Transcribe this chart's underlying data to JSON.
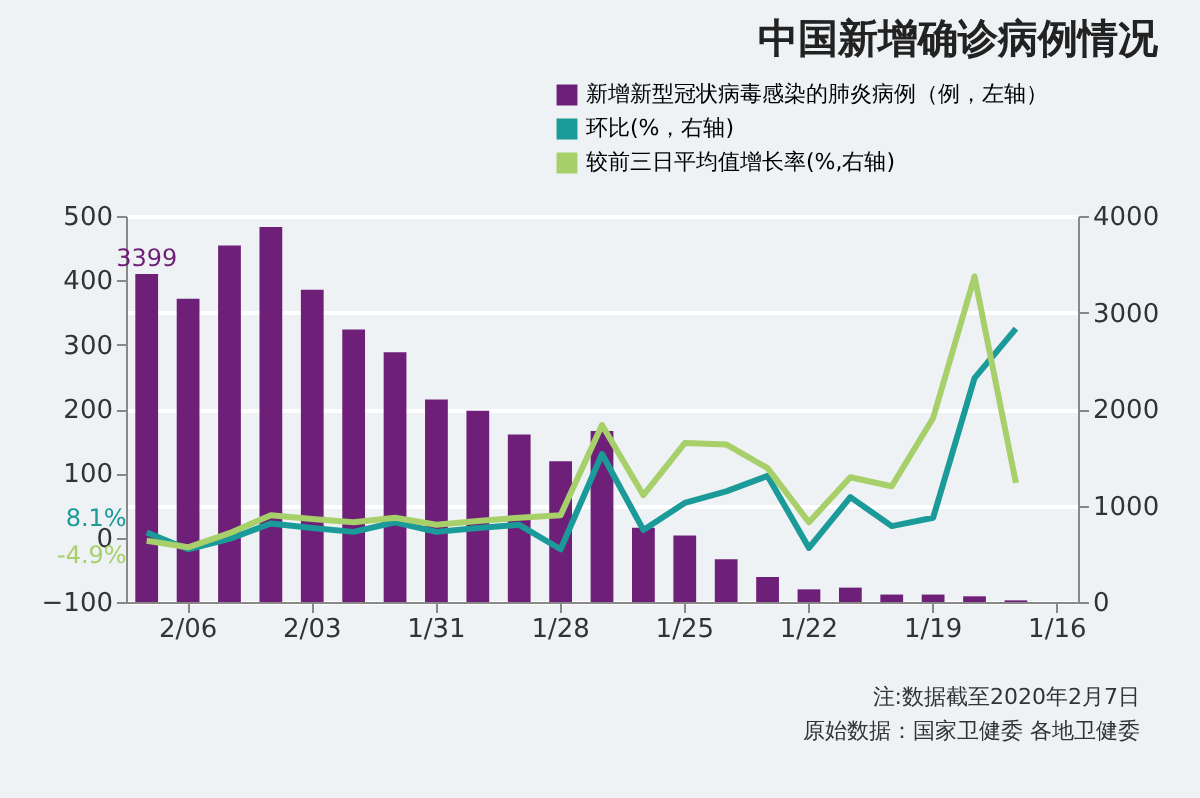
{
  "chart_data": {
    "type": "bar",
    "title": "中国新增确诊病例情况",
    "categories": [
      null,
      "2/06",
      null,
      null,
      "2/03",
      null,
      null,
      "1/31",
      null,
      null,
      "1/28",
      null,
      null,
      "1/25",
      null,
      null,
      "1/22",
      null,
      null,
      "1/19",
      null,
      null,
      "1/16"
    ],
    "series": [
      {
        "name": "新增新型冠状病毒感染的肺炎病例（例，左轴）",
        "color": "#6e1f78",
        "values": [
          3399,
          3143,
          3694,
          3887,
          3235,
          2825,
          2589,
          2099,
          1981,
          1737,
          1459,
          1771,
          769,
          688,
          444,
          259,
          131,
          149,
          77,
          77,
          59,
          17,
          null
        ],
        "value_labels": [
          "3399",
          null,
          null,
          null,
          null,
          null,
          null,
          null,
          null,
          null,
          null,
          null,
          null,
          null,
          null,
          null,
          null,
          null,
          null,
          null,
          null,
          null,
          null
        ]
      },
      {
        "name": "环比(%，右轴)",
        "type": "line",
        "axis": "y2",
        "color": "#1a9a98",
        "values": [
          8.1,
          -18,
          -2,
          22,
          15,
          9,
          24,
          9,
          15,
          20,
          -18,
          130,
          12,
          54,
          72,
          96,
          -16,
          63,
          18,
          31,
          248,
          325,
          null
        ],
        "value_labels": [
          "8.1%",
          null,
          null,
          null,
          null,
          null,
          null,
          null,
          null,
          null,
          null,
          null,
          null,
          null,
          null,
          null,
          null,
          null,
          null,
          null,
          null,
          null,
          null
        ]
      },
      {
        "name": "较前三日平均值增长率(%,右轴)",
        "type": "line",
        "axis": "y2",
        "color": "#a7cf6a",
        "values": [
          -4.9,
          -15,
          7,
          35,
          29,
          24,
          31,
          20,
          26,
          31,
          35,
          175,
          66,
          147,
          145,
          108,
          24,
          94,
          80,
          186,
          406,
          85,
          null
        ],
        "value_labels": [
          "-4.9%",
          null,
          null,
          null,
          null,
          null,
          null,
          null,
          null,
          null,
          null,
          null,
          null,
          null,
          null,
          null,
          null,
          null,
          null,
          null,
          null,
          null,
          null
        ]
      }
    ],
    "ylim": [
      0,
      4000
    ],
    "yticks": [
      0,
      1000,
      2000,
      3000,
      4000
    ],
    "y2lim": [
      -100,
      500
    ],
    "y2ticks": [
      -100,
      0,
      100,
      200,
      300,
      400,
      500
    ],
    "grid": "y",
    "legend": "top right",
    "annotations": [
      "注:数据截至2020年2月7日",
      "原始数据：国家卫健委 各地卫健委"
    ]
  }
}
